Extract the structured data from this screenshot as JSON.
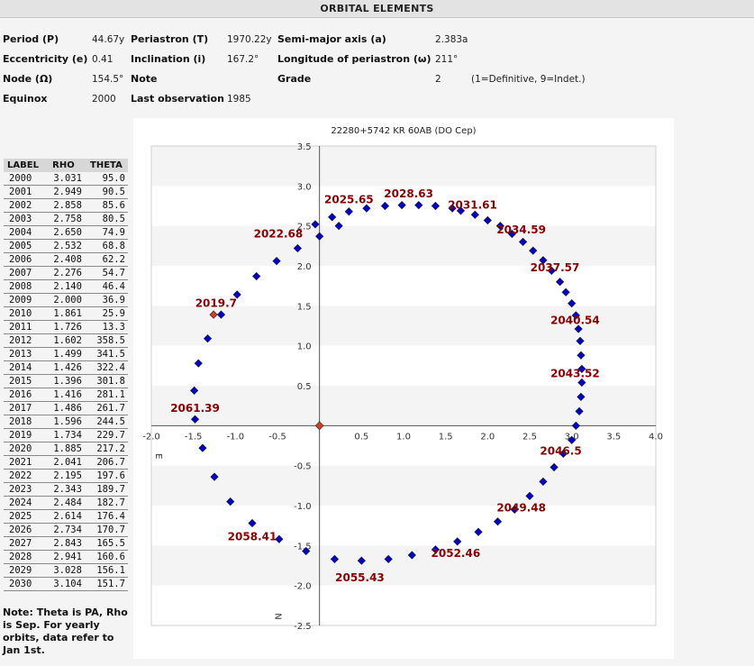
{
  "header": {
    "title": "ORBITAL ELEMENTS"
  },
  "elements": {
    "period_label": "Period (P)",
    "period_value": "44.67y",
    "periastron_label": "Periastron (T)",
    "periastron_value": "1970.22y",
    "sma_label": "Semi-major axis (a)",
    "sma_value": "2.383a",
    "ecc_label": "Eccentricity (e)",
    "ecc_value": "0.41",
    "incl_label": "Inclination (i)",
    "incl_value": "167.2°",
    "omega_label": "Longitude of periastron (ω)",
    "omega_value": "211°",
    "node_label": "Node (Ω)",
    "node_value": "154.5°",
    "note_label": "Note",
    "grade_label": "Grade",
    "grade_value": "2",
    "grade_hint": "(1=Definitive, 9=Indet.)",
    "equinox_label": "Equinox",
    "equinox_value": "2000",
    "lastobs_label": "Last observation",
    "lastobs_value": "1985"
  },
  "ephemeris": {
    "headers": [
      "LABEL",
      "RHO",
      "THETA"
    ],
    "rows": [
      [
        "2000",
        "3.031",
        "95.0"
      ],
      [
        "2001",
        "2.949",
        "90.5"
      ],
      [
        "2002",
        "2.858",
        "85.6"
      ],
      [
        "2003",
        "2.758",
        "80.5"
      ],
      [
        "2004",
        "2.650",
        "74.9"
      ],
      [
        "2005",
        "2.532",
        "68.8"
      ],
      [
        "2006",
        "2.408",
        "62.2"
      ],
      [
        "2007",
        "2.276",
        "54.7"
      ],
      [
        "2008",
        "2.140",
        "46.4"
      ],
      [
        "2009",
        "2.000",
        "36.9"
      ],
      [
        "2010",
        "1.861",
        "25.9"
      ],
      [
        "2011",
        "1.726",
        "13.3"
      ],
      [
        "2012",
        "1.602",
        "358.5"
      ],
      [
        "2013",
        "1.499",
        "341.5"
      ],
      [
        "2014",
        "1.426",
        "322.4"
      ],
      [
        "2015",
        "1.396",
        "301.8"
      ],
      [
        "2016",
        "1.416",
        "281.1"
      ],
      [
        "2017",
        "1.486",
        "261.7"
      ],
      [
        "2018",
        "1.596",
        "244.5"
      ],
      [
        "2019",
        "1.734",
        "229.7"
      ],
      [
        "2020",
        "1.885",
        "217.2"
      ],
      [
        "2021",
        "2.041",
        "206.7"
      ],
      [
        "2022",
        "2.195",
        "197.6"
      ],
      [
        "2023",
        "2.343",
        "189.7"
      ],
      [
        "2024",
        "2.484",
        "182.7"
      ],
      [
        "2025",
        "2.614",
        "176.4"
      ],
      [
        "2026",
        "2.734",
        "170.7"
      ],
      [
        "2027",
        "2.843",
        "165.5"
      ],
      [
        "2028",
        "2.941",
        "160.6"
      ],
      [
        "2029",
        "3.028",
        "156.1"
      ],
      [
        "2030",
        "3.104",
        "151.7"
      ]
    ]
  },
  "note": "Note: Theta is PA, Rho is Sep. For yearly orbits, data refer to Jan 1st.",
  "chart_data": {
    "type": "scatter",
    "title": "22280+5742 KR   60AB (DO Cep)",
    "xlim": [
      -2.0,
      4.0
    ],
    "ylim": [
      -2.5,
      3.5
    ],
    "x_ticks": [
      -2.0,
      -1.5,
      -1.0,
      -0.5,
      0.5,
      1.0,
      1.5,
      2.0,
      2.5,
      3.0,
      3.5,
      4.0
    ],
    "x_tick_labels": [
      "-2.0",
      "-1.5",
      "-1.0",
      "-0.5",
      "0.5",
      "1.0",
      "1.5",
      "2.0",
      "2.5",
      "3.0",
      "3.5",
      "4.0"
    ],
    "y_ticks": [
      3.5,
      3.0,
      2.5,
      2.0,
      1.5,
      1.0,
      0.5,
      -0.5,
      -1.0,
      -1.5,
      -2.0,
      -2.5
    ],
    "y_tick_labels": [
      "3.5",
      "3.0",
      "2.5",
      "2.0",
      "1.5",
      "1.0",
      "0.5",
      "-0.5",
      "-1.0",
      "-1.5",
      "-2.0",
      "-2.5"
    ],
    "x_axis_letter": "E",
    "y_axis_letter": "N",
    "grid": "horizontal bands",
    "primary": {
      "x": 0,
      "y": 0,
      "color": "#d04020"
    },
    "current_point": {
      "x": -1.26,
      "y": 1.39,
      "color": "#d04020"
    },
    "points_color": "#0000cc",
    "label_color": "#8b0000",
    "points": [
      [
        0.15,
        2.61
      ],
      [
        0.35,
        2.68
      ],
      [
        0.56,
        2.72
      ],
      [
        0.78,
        2.75
      ],
      [
        0.98,
        2.76
      ],
      [
        1.18,
        2.76
      ],
      [
        1.38,
        2.75
      ],
      [
        1.58,
        2.72
      ],
      [
        1.68,
        2.69
      ],
      [
        1.85,
        2.64
      ],
      [
        2.0,
        2.57
      ],
      [
        2.15,
        2.5
      ],
      [
        2.29,
        2.4
      ],
      [
        2.42,
        2.3
      ],
      [
        2.54,
        2.19
      ],
      [
        2.66,
        2.07
      ],
      [
        2.76,
        1.94
      ],
      [
        2.86,
        1.8
      ],
      [
        2.93,
        1.67
      ],
      [
        3.0,
        1.53
      ],
      [
        3.05,
        1.38
      ],
      [
        3.08,
        1.21
      ],
      [
        3.1,
        1.06
      ],
      [
        3.11,
        0.88
      ],
      [
        3.12,
        0.71
      ],
      [
        3.12,
        0.54
      ],
      [
        3.11,
        0.36
      ],
      [
        3.09,
        0.18
      ],
      [
        3.05,
        0.0
      ],
      [
        3.0,
        -0.18
      ],
      [
        2.9,
        -0.35
      ],
      [
        2.79,
        -0.52
      ],
      [
        2.66,
        -0.7
      ],
      [
        2.5,
        -0.88
      ],
      [
        2.32,
        -1.05
      ],
      [
        2.12,
        -1.2
      ],
      [
        1.89,
        -1.33
      ],
      [
        1.64,
        -1.45
      ],
      [
        1.38,
        -1.55
      ],
      [
        1.1,
        -1.62
      ],
      [
        0.82,
        -1.67
      ],
      [
        0.5,
        -1.69
      ],
      [
        0.18,
        -1.67
      ],
      [
        -0.16,
        -1.57
      ],
      [
        -0.48,
        -1.42
      ],
      [
        -0.8,
        -1.22
      ],
      [
        -1.06,
        -0.95
      ],
      [
        -1.25,
        -0.64
      ],
      [
        -1.39,
        -0.28
      ],
      [
        -1.48,
        0.08
      ],
      [
        -1.49,
        0.44
      ],
      [
        -1.44,
        0.78
      ],
      [
        -1.33,
        1.09
      ],
      [
        -1.17,
        1.39
      ],
      [
        -0.98,
        1.64
      ],
      [
        -0.75,
        1.87
      ],
      [
        -0.51,
        2.06
      ],
      [
        -0.26,
        2.22
      ],
      [
        0.0,
        2.37
      ],
      [
        0.23,
        2.5
      ],
      [
        -0.05,
        2.52
      ]
    ],
    "year_labels": [
      {
        "text": "2025.65",
        "x": 0.35,
        "y": 2.83
      },
      {
        "text": "2028.63",
        "x": 1.06,
        "y": 2.9
      },
      {
        "text": "2031.61",
        "x": 1.82,
        "y": 2.76
      },
      {
        "text": "2034.59",
        "x": 2.4,
        "y": 2.45
      },
      {
        "text": "2037.57",
        "x": 2.8,
        "y": 1.98
      },
      {
        "text": "2040.54",
        "x": 3.04,
        "y": 1.32
      },
      {
        "text": "2043.52",
        "x": 3.04,
        "y": 0.65
      },
      {
        "text": "2046.5",
        "x": 2.87,
        "y": -0.32
      },
      {
        "text": "2049.48",
        "x": 2.4,
        "y": -1.03
      },
      {
        "text": "2052.46",
        "x": 1.62,
        "y": -1.6
      },
      {
        "text": "2055.43",
        "x": 0.48,
        "y": -1.9
      },
      {
        "text": "2058.41",
        "x": -0.8,
        "y": -1.39
      },
      {
        "text": "2061.39",
        "x": -1.48,
        "y": 0.22
      },
      {
        "text": "2019.7",
        "x": -1.23,
        "y": 1.53
      },
      {
        "text": "2022.68",
        "x": -0.49,
        "y": 2.4
      }
    ]
  }
}
